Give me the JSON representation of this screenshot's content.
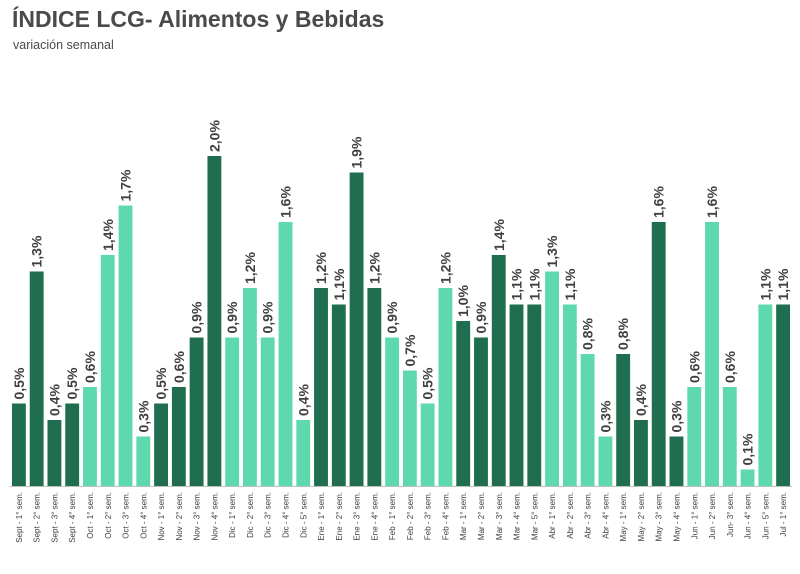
{
  "header": {
    "title": "ÍNDICE LCG- Alimentos y Bebidas",
    "subtitle": "variación semanal"
  },
  "colors": {
    "dark": "#1e6e4f",
    "light": "#5ed9ae",
    "axis": "#bfbfbf",
    "text": "#404040"
  },
  "chart_data": {
    "type": "bar",
    "title": "ÍNDICE LCG- Alimentos y Bebidas",
    "subtitle": "variación semanal",
    "xlabel": "",
    "ylabel": "",
    "ylim": [
      0,
      2.2
    ],
    "grid": false,
    "legend": "none",
    "categories": [
      "Sept - 1° sem.",
      "Sept - 2° sem.",
      "Sept - 3° sem.",
      "Sept - 4° sem.",
      "Oct - 1° sem.",
      "Oct - 2° sem.",
      "Oct - 3° sem.",
      "Oct - 4° sem.",
      "Nov - 1° sem.",
      "Nov - 2° sem.",
      "Nov - 3° sem.",
      "Nov - 4° sem.",
      "Dic - 1° sem.",
      "Dic - 2° sem.",
      "Dic - 3° sem.",
      "Dic - 4° sem.",
      "Dic - 5° sem.",
      "Ene - 1° sem.",
      "Ene - 2° sem.",
      "Ene - 3° sem.",
      "Ene - 4° sem.",
      "Feb - 1° sem.",
      "Feb - 2° sem.",
      "Feb - 3° sem.",
      "Feb - 4° sem.",
      "Mar - 1° sem.",
      "Mar - 2° sem.",
      "Mar - 3° sem.",
      "Mar - 4° sem.",
      "Mar - 5° sem.",
      "Abr - 1° sem.",
      "Abr - 2° sem.",
      "Abr - 3° sem.",
      "Abr - 4° sem.",
      "May - 1° sem.",
      "May - 2° sem.",
      "May - 3° sem.",
      "May - 4° sem.",
      "Jun - 1° sem.",
      "Jun - 2° sem.",
      "Jun- 3° sem.",
      "Jun - 4° sem.",
      "Jun - 5° sem.",
      "Jul - 1° sem."
    ],
    "values": [
      0.5,
      1.3,
      0.4,
      0.5,
      0.6,
      1.4,
      1.7,
      0.3,
      0.5,
      0.6,
      0.9,
      2.0,
      0.9,
      1.2,
      0.9,
      1.6,
      0.4,
      1.2,
      1.1,
      1.9,
      1.2,
      0.9,
      0.7,
      0.5,
      1.2,
      1.0,
      0.9,
      1.4,
      1.1,
      1.1,
      1.3,
      1.1,
      0.8,
      0.3,
      0.8,
      0.4,
      1.6,
      0.3,
      0.6,
      1.6,
      0.6,
      0.1,
      1.1,
      1.1
    ],
    "data_labels": [
      "0,5%",
      "1,3%",
      "0,4%",
      "0,5%",
      "0,6%",
      "1,4%",
      "1,7%",
      "0,3%",
      "0,5%",
      "0,6%",
      "0,9%",
      "2,0%",
      "0,9%",
      "1,2%",
      "0,9%",
      "1,6%",
      "0,4%",
      "1,2%",
      "1,1%",
      "1,9%",
      "1,2%",
      "0,9%",
      "0,7%",
      "0,5%",
      "1,2%",
      "1,0%",
      "0,9%",
      "1,4%",
      "1,1%",
      "1,1%",
      "1,3%",
      "1,1%",
      "0,8%",
      "0,3%",
      "0,8%",
      "0,4%",
      "1,6%",
      "0,3%",
      "0,6%",
      "1,6%",
      "0,6%",
      "0,1%",
      "1,1%",
      "1,1%"
    ],
    "month_shading": [
      "dark",
      "dark",
      "dark",
      "dark",
      "light",
      "light",
      "light",
      "light",
      "dark",
      "dark",
      "dark",
      "dark",
      "light",
      "light",
      "light",
      "light",
      "light",
      "dark",
      "dark",
      "dark",
      "dark",
      "light",
      "light",
      "light",
      "light",
      "dark",
      "dark",
      "dark",
      "dark",
      "dark",
      "light",
      "light",
      "light",
      "light",
      "dark",
      "dark",
      "dark",
      "dark",
      "light",
      "light",
      "light",
      "light",
      "light",
      "dark"
    ]
  }
}
